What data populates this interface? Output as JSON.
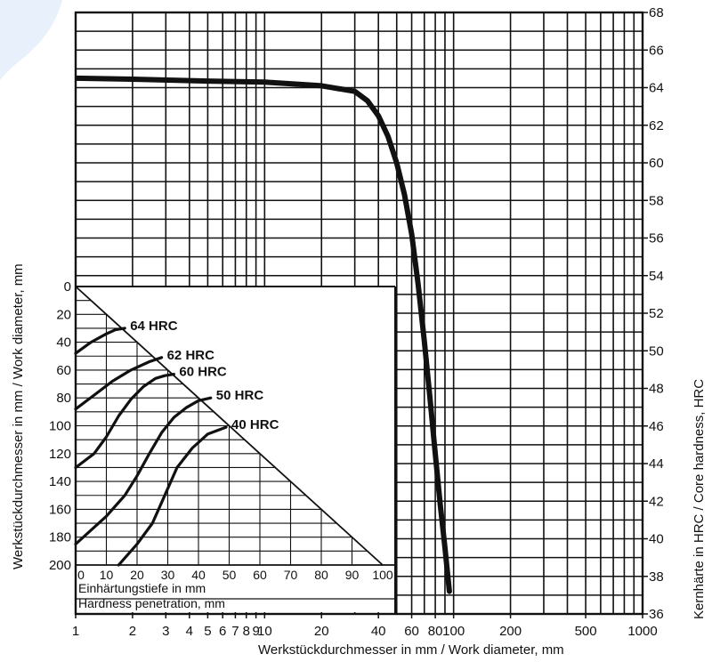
{
  "chart_data": [
    {
      "type": "line",
      "name": "main",
      "xlabel": "Werkstückdurchmesser in mm / Work diameter, mm",
      "ylabel_left": "Werkstückdurchmesser in mm / Work diameter, mm",
      "ylabel_right": "Kernhärte in HRC / Core hardness, HRC",
      "x_scale": "log",
      "xlim": [
        1,
        1000
      ],
      "ylim": [
        36,
        68
      ],
      "x_tick_labels": [
        {
          "v": 1,
          "t": "1"
        },
        {
          "v": 2,
          "t": "2"
        },
        {
          "v": 3,
          "t": "3"
        },
        {
          "v": 4,
          "t": "4"
        },
        {
          "v": 5,
          "t": "5"
        },
        {
          "v": 6,
          "t": "6"
        },
        {
          "v": 7,
          "t": "7"
        },
        {
          "v": 8,
          "t": "8"
        },
        {
          "v": 9,
          "t": "9"
        },
        {
          "v": 10,
          "t": "10"
        },
        {
          "v": 20,
          "t": "20"
        },
        {
          "v": 40,
          "t": "40"
        },
        {
          "v": 60,
          "t": "60"
        },
        {
          "v": 80,
          "t": "80"
        },
        {
          "v": 100,
          "t": "100"
        },
        {
          "v": 200,
          "t": "200"
        },
        {
          "v": 500,
          "t": "500"
        },
        {
          "v": 1000,
          "t": "1000"
        }
      ],
      "y_ticks": [
        36,
        38,
        40,
        42,
        44,
        46,
        48,
        50,
        52,
        54,
        56,
        58,
        60,
        62,
        64,
        66,
        68
      ],
      "grid": true,
      "series": [
        {
          "x": [
            1,
            2,
            5,
            10,
            20,
            30,
            35,
            40,
            45,
            50,
            55,
            60,
            65,
            70,
            75,
            80,
            85,
            90,
            95
          ],
          "y": [
            64.5,
            64.45,
            64.35,
            64.3,
            64.1,
            63.8,
            63.3,
            62.5,
            61.4,
            60.0,
            58.3,
            56.2,
            53.5,
            50.5,
            47.5,
            44.5,
            41.8,
            39.5,
            37.2
          ]
        }
      ]
    },
    {
      "type": "line",
      "name": "inset",
      "xlabel_de": "Einhärtungstiefe in mm",
      "xlabel_en": "Hardness penetration, mm",
      "xlim": [
        0,
        100
      ],
      "ylim": [
        200,
        0
      ],
      "x_ticks": [
        0,
        10,
        20,
        30,
        40,
        50,
        60,
        70,
        80,
        90,
        100
      ],
      "y_ticks": [
        0,
        20,
        40,
        60,
        80,
        100,
        120,
        140,
        160,
        180,
        200
      ],
      "grid": true,
      "series": [
        {
          "name": "64 HRC",
          "x": [
            0,
            5,
            10,
            13,
            16
          ],
          "y": [
            48,
            40,
            34,
            31,
            30
          ]
        },
        {
          "name": "62 HRC",
          "x": [
            0,
            6,
            12,
            18,
            24,
            28
          ],
          "y": [
            88,
            78,
            68,
            60,
            54,
            51
          ]
        },
        {
          "name": "60 HRC",
          "x": [
            0,
            6,
            10,
            14,
            18,
            22,
            26,
            29,
            32
          ],
          "y": [
            130,
            120,
            108,
            93,
            81,
            72,
            66,
            64,
            63
          ]
        },
        {
          "name": "50 HRC",
          "x": [
            0,
            10,
            16,
            20,
            24,
            28,
            32,
            36,
            40,
            44
          ],
          "y": [
            185,
            165,
            150,
            136,
            120,
            105,
            94,
            87,
            82,
            80
          ]
        },
        {
          "name": "40 HRC",
          "x": [
            14,
            20,
            25,
            29,
            33,
            38,
            43,
            49
          ],
          "y": [
            200,
            185,
            170,
            150,
            130,
            116,
            106,
            101
          ]
        }
      ]
    }
  ]
}
